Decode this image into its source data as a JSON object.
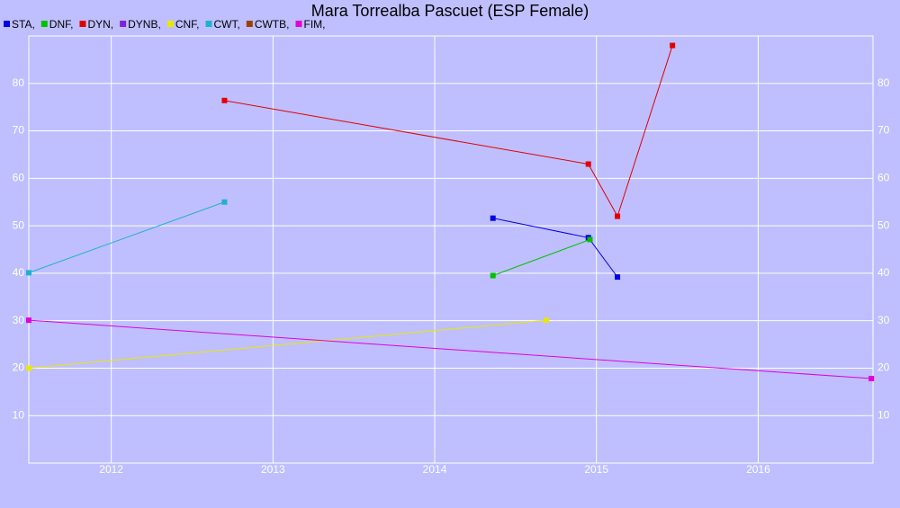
{
  "chart_data": {
    "type": "line",
    "title": "Mara Torrealba Pascuet (ESP Female)",
    "xlim": [
      2011.49,
      2016.71
    ],
    "xticks": [
      2012,
      2013,
      2014,
      2015,
      2016
    ],
    "ylim": [
      0,
      90
    ],
    "yticks": [
      10,
      20,
      30,
      40,
      50,
      60,
      70,
      80
    ],
    "grid": true,
    "series": [
      {
        "name": "STA,",
        "color": "#0000e0",
        "x": [
          2014.36,
          2014.95,
          2015.13
        ],
        "values": [
          51.6,
          47.5,
          39.2
        ]
      },
      {
        "name": "DNF,",
        "color": "#00c000",
        "x": [
          2014.36,
          2014.96
        ],
        "values": [
          39.5,
          47.1
        ]
      },
      {
        "name": "DYN,",
        "color": "#e00000",
        "x": [
          2012.7,
          2014.95,
          2015.13,
          2015.47
        ],
        "values": [
          76.4,
          63.0,
          52.0,
          88.0
        ]
      },
      {
        "name": "DYNB,",
        "color": "#8020e0",
        "x": [],
        "values": []
      },
      {
        "name": "CNF,",
        "color": "#e8e800",
        "x": [
          2011.49,
          2014.69
        ],
        "values": [
          20.0,
          30.1
        ]
      },
      {
        "name": "CWT,",
        "color": "#20b0d0",
        "x": [
          2011.49,
          2012.7
        ],
        "values": [
          40.1,
          55.0
        ]
      },
      {
        "name": "CWTB,",
        "color": "#a04000",
        "x": [],
        "values": []
      },
      {
        "name": "FIM,",
        "color": "#e000e0",
        "x": [
          2011.49,
          2016.7
        ],
        "values": [
          30.1,
          17.8
        ]
      }
    ]
  }
}
